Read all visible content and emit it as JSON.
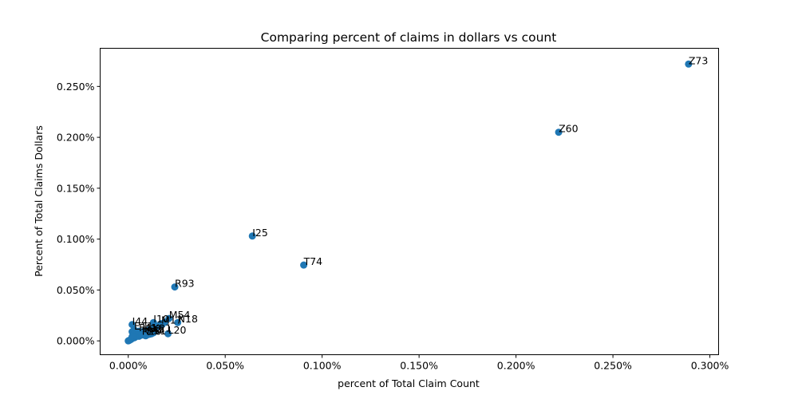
{
  "chart_data": {
    "type": "scatter",
    "title": "Comparing percent of claims in dollars vs count",
    "xlabel": "percent of Total Claim Count",
    "ylabel": "Percent of Total Claims Dollars",
    "xlim": [
      -0.0145,
      0.3045
    ],
    "ylim": [
      -0.0136,
      0.2875
    ],
    "x_ticks": [
      0.0,
      0.05,
      0.1,
      0.15,
      0.2,
      0.25,
      0.3
    ],
    "x_tick_labels": [
      "0.000%",
      "0.050%",
      "0.100%",
      "0.150%",
      "0.200%",
      "0.250%",
      "0.300%"
    ],
    "y_ticks": [
      0.0,
      0.05,
      0.1,
      0.15,
      0.2,
      0.25
    ],
    "y_tick_labels": [
      "0.000%",
      "0.050%",
      "0.100%",
      "0.150%",
      "0.200%",
      "0.250%"
    ],
    "grid": false,
    "marker_color": "#1f77b4",
    "labeled_points": [
      {
        "label": "Z73",
        "x": 0.289,
        "y": 0.272
      },
      {
        "label": "Z60",
        "x": 0.222,
        "y": 0.205
      },
      {
        "label": "I25",
        "x": 0.064,
        "y": 0.103
      },
      {
        "label": "T74",
        "x": 0.0905,
        "y": 0.0745
      },
      {
        "label": "R93",
        "x": 0.024,
        "y": 0.053
      },
      {
        "label": "M54",
        "x": 0.021,
        "y": 0.022
      },
      {
        "label": "N18",
        "x": 0.0255,
        "y": 0.018
      },
      {
        "label": "I44",
        "x": 0.002,
        "y": 0.016
      },
      {
        "label": "L20",
        "x": 0.0205,
        "y": 0.007
      },
      {
        "label": "I10",
        "x": 0.013,
        "y": 0.018
      },
      {
        "label": "M17",
        "x": 0.017,
        "y": 0.017
      },
      {
        "label": "E11",
        "x": 0.003,
        "y": 0.011
      },
      {
        "label": "F41",
        "x": 0.0055,
        "y": 0.0095
      },
      {
        "label": "F32",
        "x": 0.008,
        "y": 0.0085
      },
      {
        "label": "J45",
        "x": 0.0105,
        "y": 0.0075
      },
      {
        "label": "K21",
        "x": 0.0125,
        "y": 0.009
      },
      {
        "label": "R51",
        "x": 0.0095,
        "y": 0.0065
      },
      {
        "label": "R10",
        "x": 0.007,
        "y": 0.006
      }
    ],
    "unlabeled_points": [
      [
        0.0,
        0.0
      ],
      [
        0.0005,
        0.0005
      ],
      [
        0.001,
        0.001
      ],
      [
        0.0015,
        0.0015
      ],
      [
        0.002,
        0.004
      ],
      [
        0.002,
        0.009
      ],
      [
        0.003,
        0.003
      ],
      [
        0.0035,
        0.006
      ],
      [
        0.004,
        0.005
      ],
      [
        0.0045,
        0.008
      ],
      [
        0.005,
        0.005
      ],
      [
        0.005,
        0.007
      ],
      [
        0.0055,
        0.0045
      ],
      [
        0.006,
        0.006
      ],
      [
        0.006,
        0.009
      ],
      [
        0.0065,
        0.0055
      ],
      [
        0.007,
        0.008
      ],
      [
        0.0075,
        0.0065
      ],
      [
        0.008,
        0.006
      ],
      [
        0.008,
        0.0095
      ],
      [
        0.0085,
        0.0075
      ],
      [
        0.009,
        0.005
      ],
      [
        0.009,
        0.0085
      ],
      [
        0.0095,
        0.0095
      ],
      [
        0.01,
        0.006
      ],
      [
        0.01,
        0.0105
      ],
      [
        0.0105,
        0.008
      ],
      [
        0.011,
        0.0065
      ],
      [
        0.011,
        0.011
      ],
      [
        0.0115,
        0.009
      ],
      [
        0.012,
        0.007
      ],
      [
        0.012,
        0.012
      ],
      [
        0.0125,
        0.0105
      ],
      [
        0.013,
        0.008
      ],
      [
        0.013,
        0.013
      ],
      [
        0.0135,
        0.0095
      ],
      [
        0.014,
        0.011
      ],
      [
        0.0145,
        0.0125
      ],
      [
        0.015,
        0.014
      ],
      [
        0.016,
        0.015
      ],
      [
        0.0175,
        0.016
      ],
      [
        0.019,
        0.0185
      ],
      [
        0.0075,
        0.007
      ],
      [
        0.0065,
        0.0075
      ],
      [
        0.0045,
        0.006
      ],
      [
        0.0035,
        0.0035
      ],
      [
        0.0025,
        0.0055
      ],
      [
        0.0085,
        0.0055
      ]
    ]
  }
}
